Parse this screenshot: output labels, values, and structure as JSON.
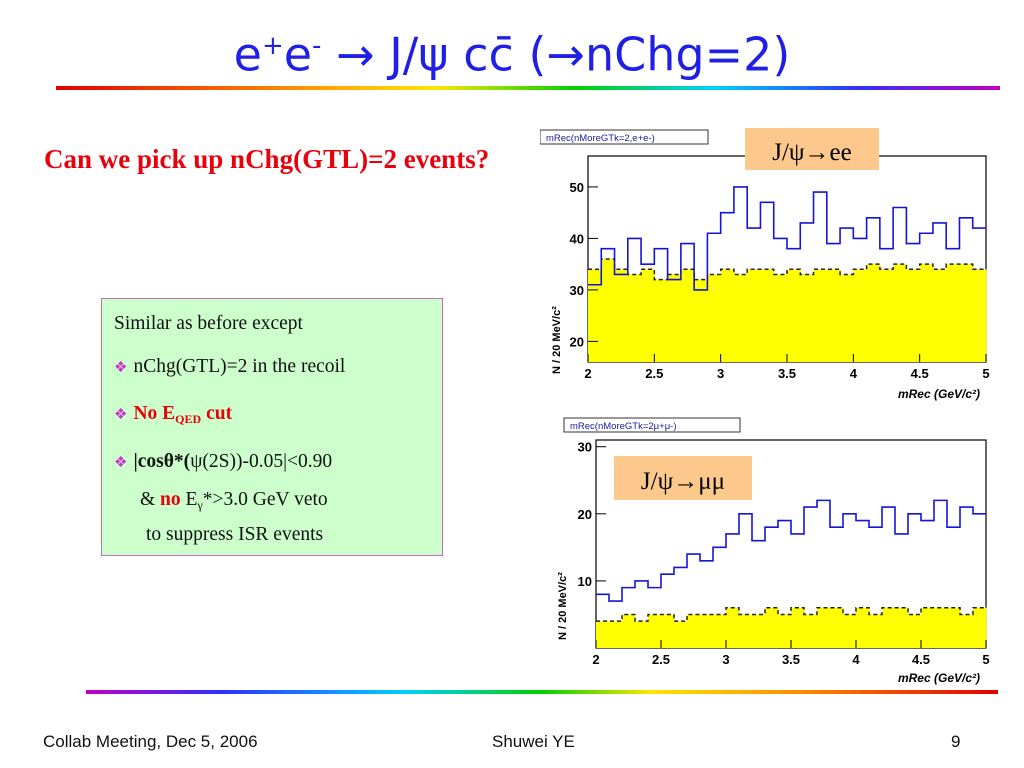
{
  "slide": {
    "title": {
      "e1": "e",
      "sup1": "+",
      "e2": "e",
      "sup2": "-",
      "arrow": "→",
      "rest": " J/ψ cc̄ (",
      "arrow2": "→",
      "tail": "nChg=2)"
    },
    "question": "Can we pick up nChg(GTL)=2 events?",
    "box": {
      "line1": "Similar as before except",
      "line2": "nChg(GTL)=2 in the recoil",
      "line3_no": "No E",
      "line3_sub": "QED",
      "line3_cut": " cut",
      "line4_a": "|",
      "line4_cos": "cos",
      "line4_b": "θ*(",
      "line4_c": "ψ(2S))-0.05|<0.90",
      "line5_amp": "& ",
      "line5_no": "no",
      "line5_e": " E",
      "line5_sub": "γ",
      "line5_rest": "*>3.0 GeV veto",
      "line6": "to suppress ISR events"
    },
    "footer": {
      "left": "Collab Meeting,  Dec 5, 2006",
      "center": "Shuwei YE",
      "right": "9"
    }
  },
  "plots": [
    {
      "id": "ee",
      "hist_title": "mRec(nMoreGTk=2,e+e-)",
      "label": "J/ψ→ee",
      "ylabel": "N / 20 MeV/c²",
      "xlabel": "mRec (GeV/c²)",
      "xticks": [
        "2",
        "2.5",
        "3",
        "3.5",
        "4",
        "4.5",
        "5"
      ],
      "yticks": [
        "20",
        "30",
        "40",
        "50"
      ]
    },
    {
      "id": "mumu",
      "hist_title": "mRec(nMoreGTk=2μ+μ-)",
      "label": "J/ψ→μμ",
      "ylabel": "N / 20 MeV/c²",
      "xlabel": "mRec (GeV/c²)",
      "xticks": [
        "2",
        "2.5",
        "3",
        "3.5",
        "4",
        "4.5",
        "5"
      ],
      "yticks": [
        "10",
        "20",
        "30"
      ]
    }
  ],
  "chart_data": [
    {
      "type": "bar",
      "title": "mRec(nMoreGTk=2,e+e-)",
      "xlabel": "mRec (GeV/c²)",
      "ylabel": "N / 20 MeV/c²",
      "xlim": [
        2,
        5
      ],
      "ylim": [
        16,
        56
      ],
      "series": [
        {
          "name": "data",
          "style": "blue-step",
          "x": [
            2.0,
            2.1,
            2.2,
            2.3,
            2.4,
            2.5,
            2.6,
            2.7,
            2.8,
            2.9,
            3.0,
            3.1,
            3.2,
            3.3,
            3.4,
            3.5,
            3.6,
            3.7,
            3.8,
            3.9,
            4.0,
            4.1,
            4.2,
            4.3,
            4.4,
            4.5,
            4.6,
            4.7,
            4.8,
            4.9
          ],
          "values": [
            31,
            38,
            33,
            40,
            35,
            38,
            32,
            39,
            30,
            41,
            45,
            50,
            42,
            47,
            40,
            38,
            43,
            49,
            39,
            42,
            40,
            44,
            38,
            46,
            39,
            41,
            43,
            38,
            44,
            42
          ]
        },
        {
          "name": "background",
          "style": "yellow-fill",
          "x": [
            2.0,
            2.1,
            2.2,
            2.3,
            2.4,
            2.5,
            2.6,
            2.7,
            2.8,
            2.9,
            3.0,
            3.1,
            3.2,
            3.3,
            3.4,
            3.5,
            3.6,
            3.7,
            3.8,
            3.9,
            4.0,
            4.1,
            4.2,
            4.3,
            4.4,
            4.5,
            4.6,
            4.7,
            4.8,
            4.9
          ],
          "values": [
            34,
            36,
            34,
            33,
            34,
            32,
            33,
            34,
            32,
            33,
            34,
            33,
            34,
            34,
            33,
            34,
            33,
            34,
            34,
            33,
            34,
            35,
            34,
            35,
            34,
            35,
            34,
            35,
            35,
            34
          ]
        }
      ]
    },
    {
      "type": "bar",
      "title": "mRec(nMoreGTk=2μ+μ-)",
      "xlabel": "mRec (GeV/c²)",
      "ylabel": "N / 20 MeV/c²",
      "xlim": [
        2,
        5
      ],
      "ylim": [
        0,
        31
      ],
      "series": [
        {
          "name": "data",
          "style": "blue-step",
          "x": [
            2.0,
            2.1,
            2.2,
            2.3,
            2.4,
            2.5,
            2.6,
            2.7,
            2.8,
            2.9,
            3.0,
            3.1,
            3.2,
            3.3,
            3.4,
            3.5,
            3.6,
            3.7,
            3.8,
            3.9,
            4.0,
            4.1,
            4.2,
            4.3,
            4.4,
            4.5,
            4.6,
            4.7,
            4.8,
            4.9
          ],
          "values": [
            8,
            7,
            9,
            10,
            9,
            11,
            12,
            14,
            13,
            15,
            17,
            20,
            16,
            18,
            19,
            17,
            21,
            22,
            18,
            20,
            19,
            18,
            21,
            17,
            20,
            19,
            22,
            18,
            21,
            20
          ]
        },
        {
          "name": "background",
          "style": "yellow-fill",
          "x": [
            2.0,
            2.1,
            2.2,
            2.3,
            2.4,
            2.5,
            2.6,
            2.7,
            2.8,
            2.9,
            3.0,
            3.1,
            3.2,
            3.3,
            3.4,
            3.5,
            3.6,
            3.7,
            3.8,
            3.9,
            4.0,
            4.1,
            4.2,
            4.3,
            4.4,
            4.5,
            4.6,
            4.7,
            4.8,
            4.9
          ],
          "values": [
            4,
            4,
            5,
            4,
            5,
            5,
            4,
            5,
            5,
            5,
            6,
            5,
            5,
            6,
            5,
            6,
            5,
            6,
            6,
            5,
            6,
            5,
            6,
            6,
            5,
            6,
            6,
            6,
            5,
            6
          ]
        }
      ]
    }
  ]
}
